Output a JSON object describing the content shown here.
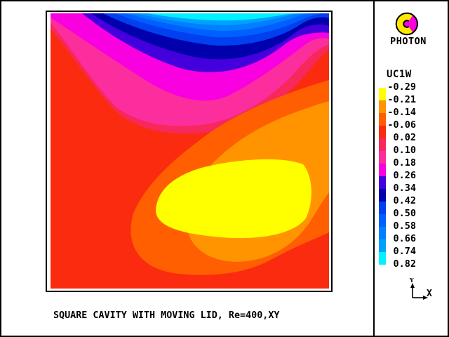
{
  "window": {
    "background": "#FFFFFF",
    "border_color": "#000000"
  },
  "logo": {
    "label": "PHOTON",
    "colors": {
      "disc": "#F800E0",
      "ring": "#FFE800",
      "outline": "#000000"
    }
  },
  "legend": {
    "variable_label": "UC1W"
  },
  "title": {
    "text": "SQUARE CAVITY WITH MOVING LID, Re=400,XY"
  },
  "axis_indicator": {
    "x_label": "X",
    "y_label": "Y"
  },
  "chart_data": {
    "type": "heatmap",
    "variable": "UC1W",
    "title": "SQUARE CAVITY WITH MOVING LID, Re=400,XY",
    "view_plane": "XY",
    "reynolds_number": 400,
    "levels": [
      -0.29,
      -0.21,
      -0.14,
      -0.06,
      0.02,
      0.1,
      0.18,
      0.26,
      0.34,
      0.42,
      0.5,
      0.58,
      0.66,
      0.74,
      0.82
    ],
    "level_labels": [
      "-0.29",
      "-0.21",
      "-0.14",
      "-0.06",
      "0.02",
      "0.10",
      "0.18",
      "0.26",
      "0.34",
      "0.42",
      "0.50",
      "0.58",
      "0.66",
      "0.74",
      "0.82"
    ],
    "band_colors": [
      "#FFFF00",
      "#FF9400",
      "#FF5F00",
      "#FB2B10",
      "#F7285C",
      "#FC2E9E",
      "#F800E0",
      "#4400DC",
      "#0000AC",
      "#0040EE",
      "#0060FF",
      "#0080FF",
      "#00A0FF",
      "#00F2FF"
    ],
    "legend_position": "right",
    "grid": false,
    "description": "Filled contour plot of the UC1W velocity component in a lid-driven square cavity: cyan-to-blue high-value bands along the moving lid at the top, violet/magenta/pink transition bands below them, red near-zero background, and an orange/yellow negative return-flow core in the lower centre-right."
  }
}
